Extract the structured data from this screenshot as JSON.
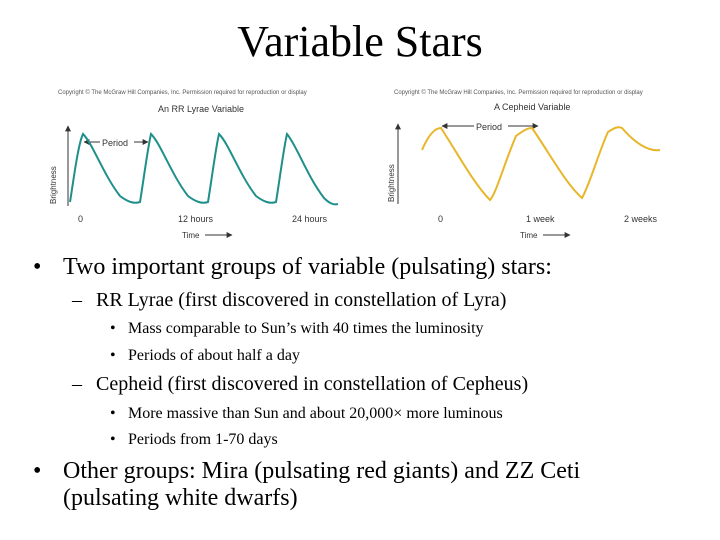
{
  "slide": {
    "title": "Variable Stars"
  },
  "figures": [
    {
      "copyright": "Copyright © The McGraw Hill Companies, Inc. Permission required for reproduction or display",
      "caption": "An RR Lyrae Variable",
      "period_label": "Period",
      "ylabel": "Brightness",
      "xlabel": "Time",
      "curve_color": "#1f8f8a",
      "ticks": [
        "0",
        "12 hours",
        "24 hours"
      ]
    },
    {
      "copyright": "Copyright © The McGraw Hill Companies, Inc. Permission required for reproduction or display",
      "caption": "A Cepheid Variable",
      "period_label": "Period",
      "ylabel": "Brightness",
      "xlabel": "Time",
      "curve_color": "#e8b62a",
      "ticks": [
        "0",
        "1 week",
        "2 weeks"
      ]
    }
  ],
  "bullets": {
    "groups": "Two important groups of variable (pulsating) stars:",
    "rr_lyrae": {
      "heading": "RR Lyrae (first discovered in constellation of Lyra)",
      "points": [
        "Mass comparable to Sun’s with 40 times the luminosity",
        "Periods of about half a day"
      ]
    },
    "cepheid": {
      "heading": "Cepheid (first discovered in constellation of Cepheus)",
      "points": [
        "More massive than Sun and about 20,000× more luminous",
        "Periods from 1-70 days"
      ]
    },
    "other_line1": "Other groups: Mira (pulsating red giants) and ZZ Ceti",
    "other_line2": "(pulsating white dwarfs)"
  }
}
